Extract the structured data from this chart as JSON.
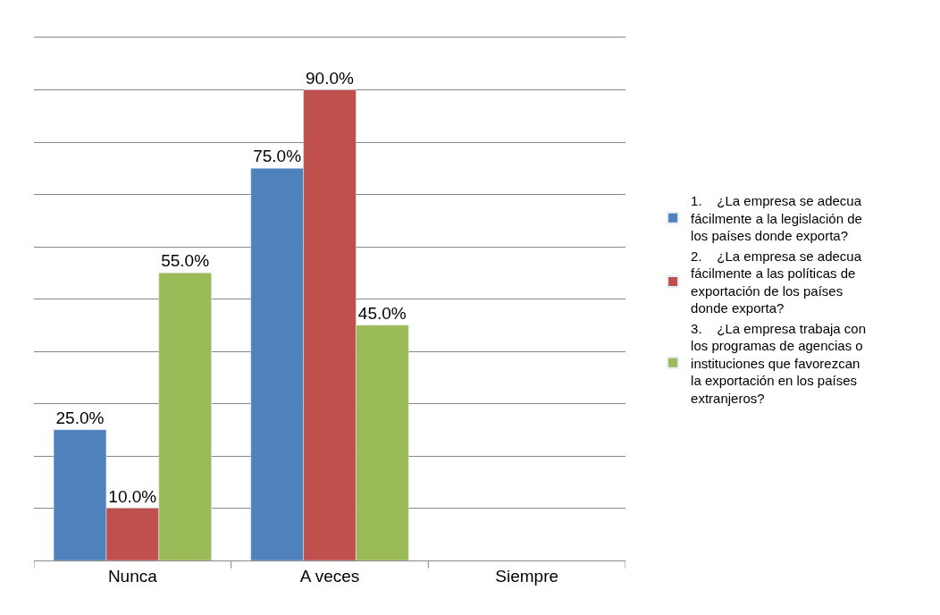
{
  "chart_data": {
    "type": "bar",
    "categories": [
      "Nunca",
      "A veces",
      "Siempre"
    ],
    "series": [
      {
        "name": "1.    ¿La empresa se adecua fácilmente a la legislación de los países donde exporta?",
        "color": "#4f81bd",
        "values": [
          25,
          75,
          null
        ],
        "value_labels": [
          "25.0%",
          "75.0%",
          null
        ]
      },
      {
        "name": "2.    ¿La empresa se adecua fácilmente a las políticas de exportación de los países donde exporta?",
        "color": "#c0504d",
        "values": [
          10,
          90,
          null
        ],
        "value_labels": [
          "10.0%",
          "90.0%",
          null
        ]
      },
      {
        "name": "3.    ¿La empresa trabaja con los programas de agencias o instituciones que favorezcan la exportación en los países extranjeros?",
        "color": "#9bbb59",
        "values": [
          55,
          45,
          null
        ],
        "value_labels": [
          "55.0%",
          "45.0%",
          null
        ]
      }
    ],
    "ylim": [
      0,
      100
    ],
    "yticks": [
      {
        "value": 0,
        "label": null
      },
      {
        "value": 10,
        "label": null
      },
      {
        "value": 20,
        "label": null
      },
      {
        "value": 30,
        "label": null
      },
      {
        "value": 40,
        "label": null
      },
      {
        "value": 50,
        "label": null
      },
      {
        "value": 60,
        "label": null
      },
      {
        "value": 70,
        "label": null
      },
      {
        "value": 80,
        "label": null
      },
      {
        "value": 90,
        "label": null
      },
      {
        "value": 100,
        "label": null
      }
    ],
    "grid": "y",
    "legend": "right",
    "tick_labels": "x"
  }
}
